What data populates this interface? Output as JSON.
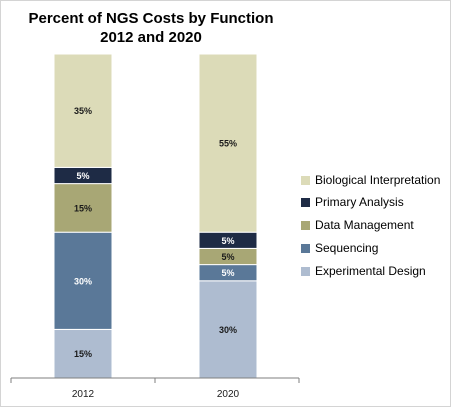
{
  "chart_data": {
    "type": "bar",
    "stacked": true,
    "title": "Percent of NGS Costs by Function",
    "subtitle": "2012 and 2020",
    "categories": [
      "2012",
      "2020"
    ],
    "series": [
      {
        "name": "Experimental Design",
        "values": [
          15,
          30
        ],
        "labels": [
          "15%",
          "30%"
        ],
        "color": "#aebcd0",
        "label_color": "#1a1a1a"
      },
      {
        "name": "Sequencing",
        "values": [
          30,
          5
        ],
        "labels": [
          "30%",
          "5%"
        ],
        "color": "#5a7898",
        "label_color": "#ffffff"
      },
      {
        "name": "Data Management",
        "values": [
          15,
          5
        ],
        "labels": [
          "15%",
          "5%"
        ],
        "color": "#a8a775",
        "label_color": "#1a1a1a"
      },
      {
        "name": "Primary Analysis",
        "values": [
          5,
          5
        ],
        "labels": [
          "5%",
          "5%"
        ],
        "color": "#1e2b45",
        "label_color": "#ffffff"
      },
      {
        "name": "Biological Interpretation",
        "values": [
          35,
          55
        ],
        "labels": [
          "35%",
          "55%"
        ],
        "color": "#dcdbb8",
        "label_color": "#1a1a1a"
      }
    ],
    "ylim": [
      0,
      100
    ],
    "grid": false,
    "legend": {
      "position": "right",
      "order": [
        "Biological Interpretation",
        "Primary Analysis",
        "Data Management",
        "Sequencing",
        "Experimental Design"
      ]
    }
  }
}
